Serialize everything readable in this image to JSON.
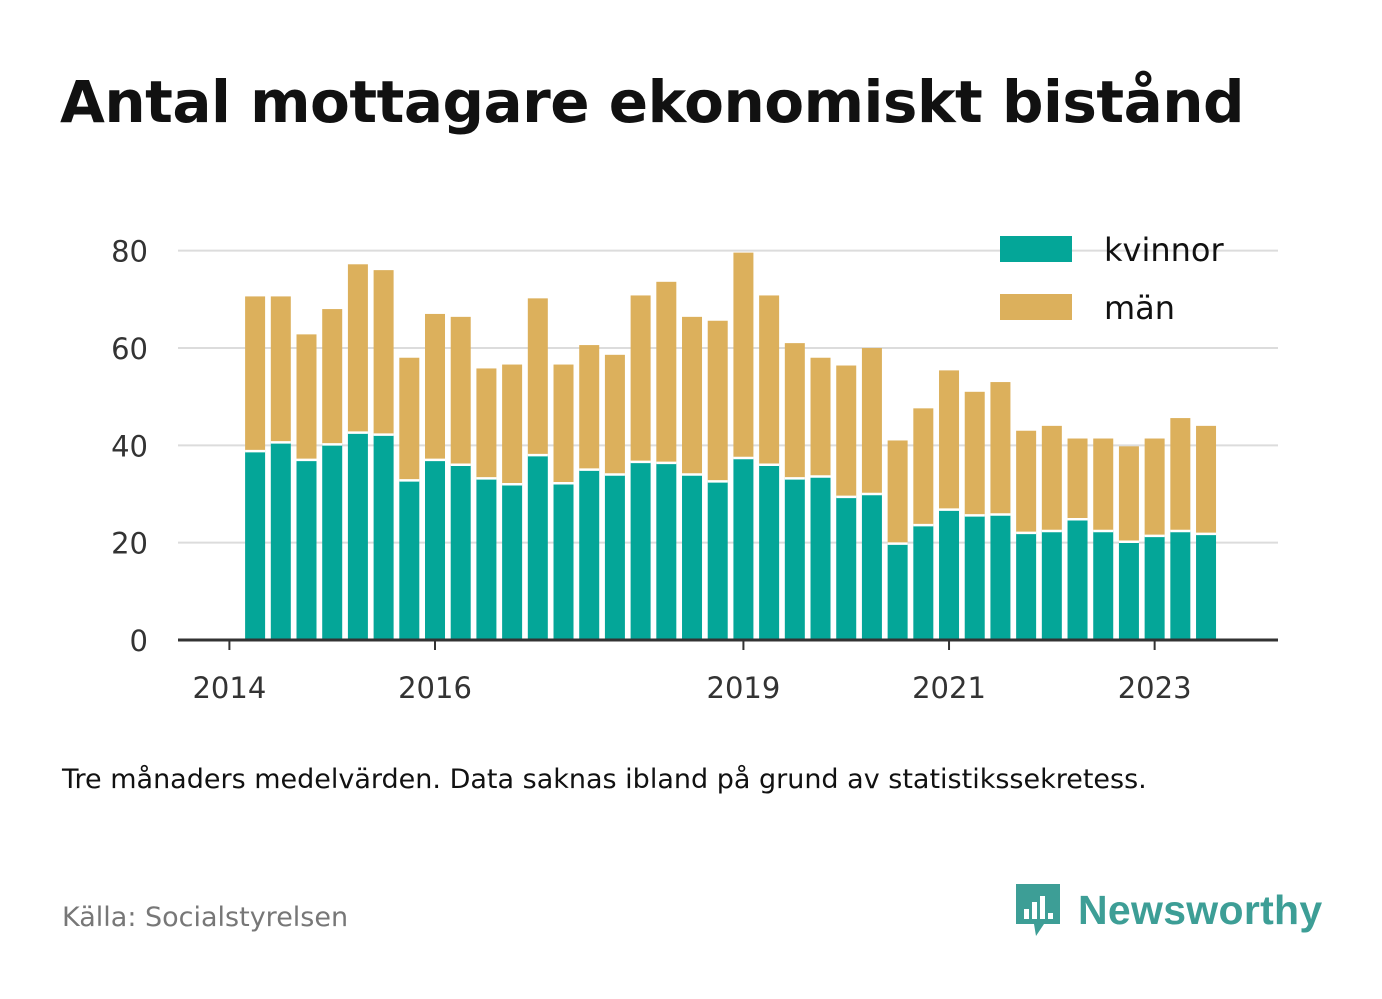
{
  "title": "Antal mottagare ekonomiskt bistånd",
  "note": "Tre månaders medelvärden. Data saknas ibland på grund av statistikssekretess.",
  "source": "Källa: Socialstyrelsen",
  "brand": {
    "name": "Newsworthy",
    "icon": "newsworthy-logo-icon",
    "color": "#3d9e96"
  },
  "chart_data": {
    "type": "bar",
    "stacked": true,
    "title": "Antal mottagare ekonomiskt bistånd",
    "xlabel": "",
    "ylabel": "",
    "ylim": [
      0,
      90
    ],
    "y_ticks": [
      0,
      20,
      40,
      60,
      80
    ],
    "x_ticks": [
      "2014",
      "2016",
      "2019",
      "2021",
      "2023"
    ],
    "x_tick_positions": [
      2014.0,
      2016.0,
      2019.0,
      2021.0,
      2023.0
    ],
    "xlim": [
      2013.5,
      2024.2
    ],
    "grid": true,
    "legend_position": "top-right",
    "x": [
      2014.25,
      2014.5,
      2014.75,
      2015.0,
      2015.25,
      2015.5,
      2015.75,
      2016.0,
      2016.25,
      2016.5,
      2016.75,
      2017.0,
      2017.25,
      2017.5,
      2017.75,
      2018.0,
      2018.25,
      2018.5,
      2018.75,
      2019.0,
      2019.25,
      2019.5,
      2019.75,
      2020.0,
      2020.25,
      2020.5,
      2020.75,
      2021.0,
      2021.25,
      2021.5,
      2021.75,
      2022.0,
      2022.25,
      2022.5,
      2022.75,
      2023.0,
      2023.25,
      2023.5
    ],
    "series": [
      {
        "name": "kvinnor",
        "color": "#04a698",
        "values": [
          38.8,
          40.6,
          37.0,
          40.2,
          42.6,
          42.2,
          32.8,
          37.0,
          36.0,
          33.2,
          32.0,
          38.0,
          32.2,
          35.0,
          34.0,
          36.6,
          36.4,
          34.0,
          32.6,
          37.4,
          36.0,
          33.2,
          33.6,
          29.4,
          30.0,
          19.8,
          23.6,
          26.8,
          25.6,
          25.8,
          22.0,
          22.4,
          24.8,
          22.4,
          20.2,
          21.4,
          22.4,
          21.8
        ]
      },
      {
        "name": "män",
        "color": "#dcb05c",
        "values": [
          31.8,
          30.0,
          25.8,
          27.8,
          34.6,
          33.8,
          25.2,
          30.0,
          30.4,
          22.6,
          24.6,
          32.2,
          24.4,
          25.6,
          24.6,
          34.2,
          37.2,
          32.4,
          33.0,
          42.2,
          34.8,
          27.8,
          24.4,
          27.0,
          30.0,
          21.2,
          24.0,
          28.6,
          25.4,
          27.2,
          21.0,
          21.6,
          16.6,
          19.0,
          19.6,
          20.0,
          23.2,
          22.2
        ]
      }
    ]
  }
}
